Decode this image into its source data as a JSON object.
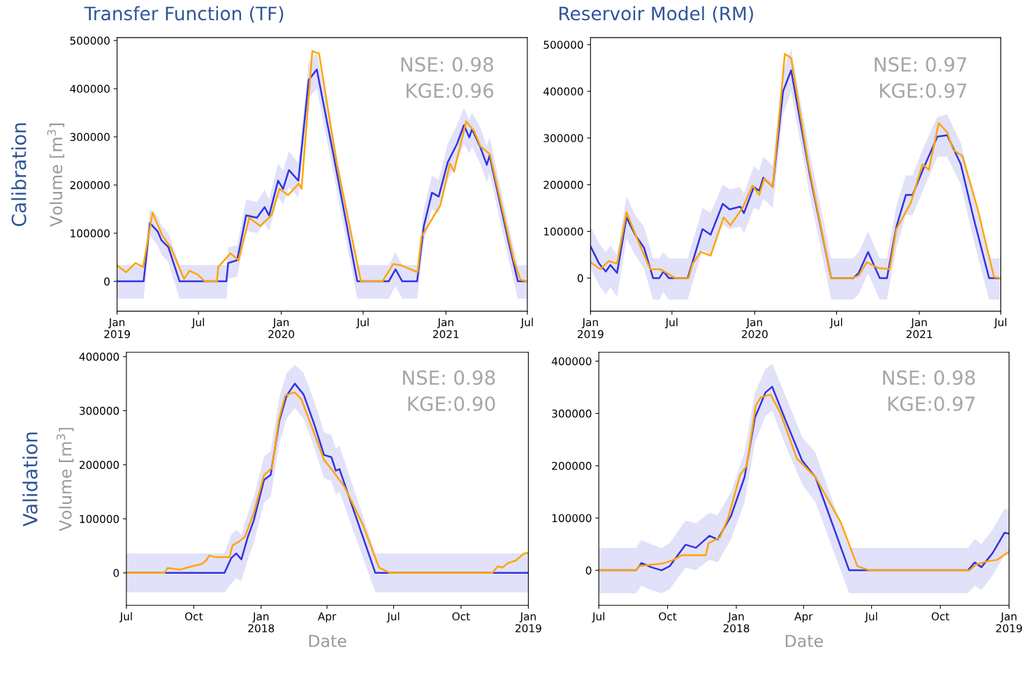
{
  "chart_data": [
    {
      "type": "line",
      "title": "Transfer Function (TF)",
      "ylabel": "Volume [m$^{3}$]",
      "annotations": [
        "NSE: 0.98\nKGE:0.96",
        "Calibration"
      ],
      "grid": false,
      "xlim": [
        "2019-01-01",
        "2021-07-01"
      ],
      "ylim": [
        -62000,
        506000
      ],
      "yticks": [
        0,
        100000,
        200000,
        300000,
        400000,
        500000
      ],
      "xticks": [
        {
          "value": "2019-01-01",
          "label": "Jan\n2019"
        },
        {
          "value": "2019-07-01",
          "label": "Jul"
        },
        {
          "value": "2020-01-01",
          "label": "Jan\n2020"
        },
        {
          "value": "2020-07-01",
          "label": "Jul"
        },
        {
          "value": "2021-01-01",
          "label": "Jan\n2021"
        },
        {
          "value": "2021-07-01",
          "label": "Jul"
        }
      ],
      "series": [
        {
          "color": "#3333dd",
          "x": [
            "2019-01-01",
            "2019-03-01",
            "2019-03-15",
            "2019-04-01",
            "2019-04-10",
            "2019-04-25",
            "2019-05-20",
            "2019-09-01",
            "2019-09-05",
            "2019-09-25",
            "2019-10-15",
            "2019-11-08",
            "2019-11-25",
            "2019-12-05",
            "2019-12-25",
            "2020-01-05",
            "2020-01-18",
            "2020-02-08",
            "2020-03-02",
            "2020-03-20",
            "2020-04-28",
            "2020-06-18",
            "2020-08-27",
            "2020-09-11",
            "2020-09-26",
            "2020-10-29",
            "2020-11-13",
            "2020-12-01",
            "2020-12-16",
            "2021-01-05",
            "2021-01-26",
            "2021-02-10",
            "2021-02-22",
            "2021-02-28",
            "2021-03-18",
            "2021-04-02",
            "2021-04-08",
            "2021-05-23",
            "2021-06-10",
            "2021-07-01"
          ],
          "values": [
            0,
            0,
            121000,
            104000,
            85000,
            71000,
            0,
            0,
            38000,
            44000,
            137000,
            132000,
            154000,
            137000,
            209000,
            192000,
            231000,
            209000,
            418000,
            440000,
            253000,
            0,
            0,
            25000,
            0,
            0,
            115000,
            184000,
            176000,
            247000,
            286000,
            324000,
            299000,
            316000,
            280000,
            242000,
            261000,
            71000,
            0,
            0
          ],
          "lower": [
            -36000,
            -36000,
            95000,
            75000,
            55000,
            40000,
            -36000,
            -36000,
            5000,
            10000,
            105000,
            100000,
            120000,
            105000,
            175000,
            160000,
            195000,
            175000,
            380000,
            400000,
            215000,
            -36000,
            -36000,
            -10000,
            -36000,
            -36000,
            80000,
            150000,
            140000,
            210000,
            250000,
            285000,
            265000,
            280000,
            245000,
            205000,
            225000,
            35000,
            -36000,
            -36000
          ],
          "upper": [
            34000,
            34000,
            150000,
            135000,
            115000,
            100000,
            34000,
            34000,
            70000,
            75000,
            170000,
            165000,
            190000,
            170000,
            245000,
            230000,
            270000,
            245000,
            455000,
            475000,
            290000,
            34000,
            34000,
            60000,
            34000,
            34000,
            150000,
            220000,
            210000,
            285000,
            325000,
            360000,
            335000,
            350000,
            320000,
            280000,
            300000,
            105000,
            34000,
            34000
          ]
        },
        {
          "color": "#ffa500",
          "x": [
            "2019-01-01",
            "2019-01-21",
            "2019-02-11",
            "2019-02-28",
            "2019-03-21",
            "2019-04-11",
            "2019-04-30",
            "2019-05-30",
            "2019-06-11",
            "2019-06-29",
            "2019-07-15",
            "2019-08-11",
            "2019-08-14",
            "2019-09-10",
            "2019-09-28",
            "2019-10-22",
            "2019-11-15",
            "2019-12-10",
            "2019-12-28",
            "2020-01-16",
            "2020-02-09",
            "2020-02-15",
            "2020-03-10",
            "2020-03-25",
            "2020-05-03",
            "2020-06-26",
            "2020-08-13",
            "2020-09-06",
            "2020-09-24",
            "2020-10-30",
            "2020-11-08",
            "2020-12-20",
            "2021-01-10",
            "2021-01-19",
            "2021-02-15",
            "2021-03-04",
            "2021-03-19",
            "2021-04-09",
            "2021-06-01",
            "2021-06-16",
            "2021-07-01"
          ],
          "values": [
            33000,
            19000,
            38000,
            30000,
            143000,
            96000,
            71000,
            5000,
            22000,
            14000,
            0,
            0,
            30000,
            58000,
            44000,
            132000,
            115000,
            137000,
            192000,
            179000,
            203000,
            192000,
            478000,
            473000,
            247000,
            0,
            0,
            36000,
            33000,
            19000,
            93000,
            159000,
            245000,
            228000,
            332000,
            313000,
            280000,
            264000,
            44000,
            3000,
            0
          ]
        }
      ]
    },
    {
      "type": "line",
      "title": "Reservoir Model (RM)",
      "annotations": [
        "NSE: 0.97\nKGE:0.97"
      ],
      "grid": false,
      "xlim": [
        "2019-01-01",
        "2021-07-01"
      ],
      "ylim": [
        -71000,
        515000
      ],
      "yticks": [
        0,
        100000,
        200000,
        300000,
        400000,
        500000
      ],
      "xticks": [
        {
          "value": "2019-01-01",
          "label": "Jan\n2019"
        },
        {
          "value": "2019-07-01",
          "label": "Jul"
        },
        {
          "value": "2020-01-01",
          "label": "Jan\n2020"
        },
        {
          "value": "2020-07-01",
          "label": "Jul"
        },
        {
          "value": "2021-01-01",
          "label": "Jan\n2021"
        },
        {
          "value": "2021-07-01",
          "label": "Jul"
        }
      ],
      "series": [
        {
          "color": "#3333dd",
          "x": [
            "2019-01-01",
            "2019-01-20",
            "2019-02-04",
            "2019-02-14",
            "2019-03-01",
            "2019-03-22",
            "2019-04-10",
            "2019-04-30",
            "2019-05-20",
            "2019-06-03",
            "2019-06-12",
            "2019-06-24",
            "2019-08-05",
            "2019-09-07",
            "2019-09-25",
            "2019-10-22",
            "2019-11-06",
            "2019-11-30",
            "2019-12-08",
            "2019-12-30",
            "2020-01-11",
            "2020-01-20",
            "2020-02-10",
            "2020-03-04",
            "2020-03-22",
            "2020-05-02",
            "2020-06-19",
            "2020-08-07",
            "2020-08-19",
            "2020-09-09",
            "2020-10-05",
            "2020-10-21",
            "2020-11-11",
            "2020-12-02",
            "2020-12-17",
            "2021-01-08",
            "2021-02-10",
            "2021-03-04",
            "2021-04-03",
            "2021-05-02",
            "2021-06-05",
            "2021-07-01"
          ],
          "values": [
            68000,
            31000,
            14000,
            28000,
            11000,
            130000,
            93000,
            65000,
            0,
            0,
            14000,
            0,
            0,
            105000,
            93000,
            159000,
            147000,
            153000,
            139000,
            195000,
            187000,
            215000,
            195000,
            400000,
            445000,
            224000,
            0,
            0,
            11000,
            56000,
            0,
            0,
            110000,
            178000,
            178000,
            230000,
            303000,
            306000,
            244000,
            127000,
            0,
            0
          ],
          "lower": [
            20000,
            -15000,
            -35000,
            -20000,
            -40000,
            85000,
            50000,
            20000,
            -46000,
            -46000,
            -30000,
            -46000,
            -46000,
            60000,
            50000,
            115000,
            105000,
            110000,
            95000,
            150000,
            145000,
            170000,
            150000,
            350000,
            400000,
            180000,
            -46000,
            -46000,
            -35000,
            10000,
            -46000,
            -46000,
            65000,
            135000,
            135000,
            185000,
            260000,
            260000,
            200000,
            80000,
            -46000,
            -46000
          ],
          "upper": [
            110000,
            75000,
            55000,
            70000,
            50000,
            175000,
            135000,
            110000,
            42000,
            42000,
            55000,
            42000,
            42000,
            150000,
            140000,
            200000,
            190000,
            195000,
            180000,
            240000,
            230000,
            260000,
            240000,
            445000,
            490000,
            270000,
            42000,
            42000,
            55000,
            100000,
            42000,
            42000,
            155000,
            220000,
            220000,
            275000,
            345000,
            350000,
            290000,
            170000,
            42000,
            42000
          ]
        },
        {
          "color": "#ffa500",
          "x": [
            "2019-01-01",
            "2019-01-23",
            "2019-02-10",
            "2019-03-01",
            "2019-03-22",
            "2019-04-13",
            "2019-05-14",
            "2019-06-05",
            "2019-07-08",
            "2019-08-07",
            "2019-08-16",
            "2019-09-03",
            "2019-09-25",
            "2019-10-24",
            "2019-11-08",
            "2019-12-05",
            "2019-12-27",
            "2020-01-11",
            "2020-01-22",
            "2020-02-10",
            "2020-03-08",
            "2020-03-22",
            "2020-04-30",
            "2020-06-19",
            "2020-08-04",
            "2020-08-19",
            "2020-09-06",
            "2020-09-30",
            "2020-10-27",
            "2020-11-11",
            "2020-12-13",
            "2021-01-08",
            "2021-01-22",
            "2021-02-13",
            "2021-03-04",
            "2021-03-17",
            "2021-04-07",
            "2021-05-10",
            "2021-06-16",
            "2021-07-01"
          ],
          "values": [
            34000,
            19000,
            36000,
            31000,
            141000,
            88000,
            19000,
            19000,
            0,
            0,
            31000,
            56000,
            48000,
            130000,
            113000,
            150000,
            198000,
            178000,
            213000,
            195000,
            480000,
            471000,
            241000,
            0,
            0,
            5000,
            34000,
            22000,
            19000,
            105000,
            161000,
            244000,
            232000,
            332000,
            312000,
            275000,
            261000,
            150000,
            2000,
            0
          ]
        }
      ]
    },
    {
      "type": "line",
      "ylabel": "Volume [m$^{3}$]",
      "xlabel": "Date",
      "annotations": [
        "NSE: 0.98\nKGE:0.90",
        "Validation"
      ],
      "grid": false,
      "xlim": [
        "2017-07-01",
        "2019-01-01"
      ],
      "ylim": [
        -60000,
        408000
      ],
      "yticks": [
        0,
        100000,
        200000,
        300000,
        400000
      ],
      "xticks": [
        {
          "value": "2017-07-01",
          "label": "Jul"
        },
        {
          "value": "2017-10-01",
          "label": "Oct"
        },
        {
          "value": "2018-01-01",
          "label": "Jan\n2018"
        },
        {
          "value": "2018-04-01",
          "label": "Apr"
        },
        {
          "value": "2018-07-01",
          "label": "Jul"
        },
        {
          "value": "2018-10-01",
          "label": "Oct"
        },
        {
          "value": "2019-01-01",
          "label": "Jan\n2019"
        }
      ],
      "series": [
        {
          "color": "#3333dd",
          "x": [
            "2017-07-01",
            "2017-11-12",
            "2017-11-21",
            "2017-11-28",
            "2017-12-05",
            "2017-12-14",
            "2017-12-22",
            "2018-01-05",
            "2018-01-14",
            "2018-01-26",
            "2018-02-05",
            "2018-02-16",
            "2018-02-28",
            "2018-03-14",
            "2018-03-28",
            "2018-04-07",
            "2018-04-13",
            "2018-04-18",
            "2018-06-06",
            "2019-01-01"
          ],
          "values": [
            0,
            0,
            27000,
            36000,
            25000,
            67000,
            97000,
            172000,
            181000,
            282000,
            328000,
            350000,
            330000,
            277000,
            218000,
            214000,
            189000,
            192000,
            0,
            0
          ],
          "lower": [
            -36000,
            -36000,
            -20000,
            -10000,
            -15000,
            25000,
            55000,
            130000,
            140000,
            240000,
            285000,
            305000,
            285000,
            235000,
            175000,
            170000,
            145000,
            150000,
            -36000,
            -36000
          ],
          "upper": [
            36000,
            36000,
            70000,
            80000,
            70000,
            110000,
            140000,
            215000,
            225000,
            325000,
            370000,
            385000,
            370000,
            320000,
            260000,
            255000,
            230000,
            235000,
            36000,
            36000
          ]
        },
        {
          "color": "#ffa500",
          "x": [
            "2017-07-01",
            "2017-08-22",
            "2017-08-26",
            "2017-09-12",
            "2017-09-28",
            "2017-10-11",
            "2017-10-18",
            "2017-10-22",
            "2017-10-31",
            "2017-11-19",
            "2017-11-23",
            "2017-12-02",
            "2017-12-10",
            "2017-12-22",
            "2018-01-05",
            "2018-01-16",
            "2018-01-25",
            "2018-02-03",
            "2018-02-16",
            "2018-02-25",
            "2018-03-14",
            "2018-03-28",
            "2018-04-11",
            "2018-04-25",
            "2018-05-20",
            "2018-06-11",
            "2018-06-26",
            "2018-11-13",
            "2018-11-20",
            "2018-11-27",
            "2018-12-04",
            "2018-12-15",
            "2018-12-26",
            "2019-01-01"
          ],
          "values": [
            0,
            0,
            9000,
            6000,
            12000,
            16000,
            23000,
            32000,
            29000,
            29000,
            51000,
            58000,
            67000,
            111000,
            181000,
            194000,
            282000,
            328000,
            334000,
            321000,
            260000,
            209000,
            185000,
            159000,
            89000,
            10000,
            0,
            0,
            12000,
            10000,
            18000,
            23000,
            36000,
            37000
          ]
        }
      ]
    },
    {
      "type": "line",
      "xlabel": "Date",
      "annotations": [
        "NSE: 0.98\nKGE:0.97"
      ],
      "grid": false,
      "xlim": [
        "2017-07-01",
        "2019-01-01"
      ],
      "ylim": [
        -67000,
        417000
      ],
      "yticks": [
        0,
        100000,
        200000,
        300000,
        400000
      ],
      "xticks": [
        {
          "value": "2017-07-01",
          "label": "Jul"
        },
        {
          "value": "2017-10-01",
          "label": "Oct"
        },
        {
          "value": "2018-01-01",
          "label": "Jan\n2018"
        },
        {
          "value": "2018-04-01",
          "label": "Apr"
        },
        {
          "value": "2018-07-01",
          "label": "Jul"
        },
        {
          "value": "2018-10-01",
          "label": "Oct"
        },
        {
          "value": "2019-01-01",
          "label": "Jan\n2019"
        }
      ],
      "series": [
        {
          "color": "#3333dd",
          "x": [
            "2017-07-01",
            "2017-08-20",
            "2017-08-27",
            "2017-09-09",
            "2017-09-23",
            "2017-10-04",
            "2017-10-25",
            "2017-11-08",
            "2017-11-26",
            "2017-12-07",
            "2017-12-25",
            "2018-01-12",
            "2018-01-26",
            "2018-02-09",
            "2018-02-18",
            "2018-03-09",
            "2018-03-30",
            "2018-04-17",
            "2018-06-01",
            "2018-11-07",
            "2018-11-16",
            "2018-11-25",
            "2018-12-10",
            "2018-12-26",
            "2019-01-01"
          ],
          "values": [
            0,
            0,
            14000,
            6000,
            0,
            8000,
            49000,
            43000,
            66000,
            59000,
            104000,
            178000,
            292000,
            340000,
            351000,
            283000,
            210000,
            178000,
            0,
            0,
            15000,
            6000,
            33000,
            72000,
            70000
          ],
          "lower": [
            -44000,
            -44000,
            -30000,
            -38000,
            -44000,
            -36000,
            5000,
            0,
            20000,
            15000,
            60000,
            130000,
            245000,
            295000,
            305000,
            235000,
            165000,
            130000,
            -44000,
            -44000,
            -30000,
            -38000,
            -10000,
            30000,
            28000
          ],
          "upper": [
            43000,
            43000,
            58000,
            50000,
            43000,
            52000,
            95000,
            90000,
            110000,
            105000,
            150000,
            225000,
            340000,
            385000,
            395000,
            330000,
            255000,
            225000,
            43000,
            43000,
            60000,
            50000,
            78000,
            118000,
            115000
          ]
        },
        {
          "color": "#ffa500",
          "x": [
            "2017-07-01",
            "2017-08-20",
            "2017-08-24",
            "2017-09-25",
            "2017-10-09",
            "2017-10-20",
            "2017-11-21",
            "2017-11-25",
            "2017-12-10",
            "2017-12-21",
            "2018-01-06",
            "2018-01-15",
            "2018-01-27",
            "2018-02-03",
            "2018-02-16",
            "2018-03-01",
            "2018-03-23",
            "2018-04-17",
            "2018-05-21",
            "2018-06-12",
            "2018-06-28",
            "2018-11-09",
            "2018-11-18",
            "2018-12-02",
            "2018-12-16",
            "2019-01-01"
          ],
          "values": [
            0,
            0,
            8000,
            13000,
            20000,
            29000,
            29000,
            52000,
            63000,
            100000,
            182000,
            200000,
            315000,
            331000,
            336000,
            301000,
            214000,
            178000,
            91000,
            8000,
            0,
            0,
            11000,
            17000,
            20000,
            36000
          ]
        }
      ]
    }
  ]
}
